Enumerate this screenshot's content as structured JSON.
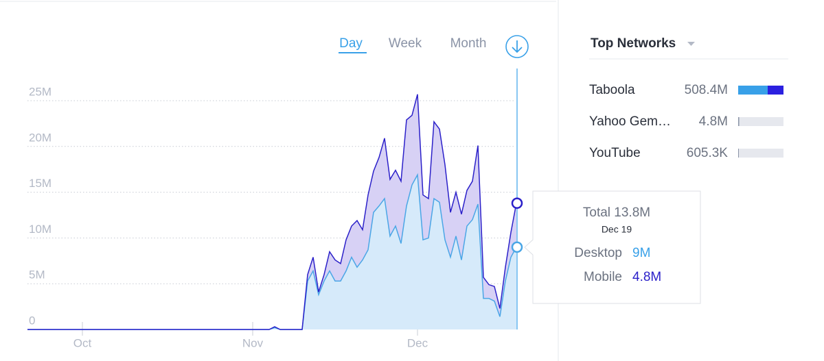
{
  "periods": [
    "Day",
    "Week",
    "Month"
  ],
  "chart_data": {
    "type": "area",
    "stacked": true,
    "categories": [
      null,
      null,
      null,
      null,
      null,
      null,
      null,
      null,
      null,
      null,
      "Oct",
      null,
      null,
      null,
      null,
      null,
      null,
      null,
      null,
      null,
      null,
      null,
      null,
      null,
      null,
      null,
      null,
      null,
      null,
      null,
      null,
      null,
      null,
      null,
      null,
      null,
      null,
      null,
      null,
      null,
      null,
      "Nov",
      null,
      null,
      null,
      null,
      null,
      null,
      null,
      null,
      null,
      null,
      null,
      null,
      null,
      null,
      null,
      null,
      null,
      null,
      null,
      null,
      null,
      null,
      null,
      null,
      null,
      null,
      null,
      null,
      null,
      "Dec",
      null,
      null,
      null,
      null,
      null,
      null,
      null,
      null,
      null,
      null,
      null,
      null,
      null,
      null,
      null,
      null,
      null,
      null
    ],
    "series": [
      {
        "name": "Desktop",
        "color": "#4aa6e6",
        "fill": "#d6eafa",
        "values": [
          0,
          0,
          0,
          0,
          0,
          0,
          0,
          0,
          0,
          0,
          0,
          0,
          0,
          0,
          0,
          0,
          0,
          0,
          0,
          0,
          0,
          0,
          0,
          0,
          0,
          0,
          0,
          0,
          0,
          0,
          0,
          0,
          0,
          0,
          0,
          0,
          0,
          0,
          0,
          0,
          0,
          0,
          0,
          0,
          0,
          0.2,
          0,
          0,
          0,
          0,
          0,
          5.3,
          6.4,
          3.8,
          5.3,
          6.4,
          5.3,
          5.3,
          6.4,
          7.9,
          6.8,
          7.6,
          8.7,
          12.8,
          13.5,
          14.3,
          10.2,
          11.3,
          9.4,
          13.5,
          15.8,
          16.9,
          9.8,
          10,
          14.3,
          13.9,
          9.8,
          7.9,
          10.2,
          7.6,
          11.3,
          12,
          13.7,
          3.4,
          3.4,
          3.1,
          1.4,
          5.3,
          7.9,
          9
        ]
      },
      {
        "name": "Mobile",
        "color": "#2b20c9",
        "fill": "#d7d1f5",
        "values": [
          0,
          0,
          0,
          0,
          0,
          0,
          0,
          0,
          0,
          0,
          0,
          0,
          0,
          0,
          0,
          0,
          0,
          0,
          0,
          0,
          0,
          0,
          0,
          0,
          0,
          0,
          0,
          0,
          0,
          0,
          0,
          0,
          0,
          0,
          0,
          0,
          0,
          0,
          0,
          0,
          0,
          0,
          0,
          0,
          0,
          0.1,
          0,
          0,
          0,
          0,
          0,
          0.7,
          1.5,
          0.3,
          0.7,
          2.1,
          2.3,
          1.9,
          3.4,
          3.4,
          5.1,
          3.3,
          6.0,
          4.5,
          5.3,
          6.6,
          6.2,
          6.1,
          6.8,
          9.4,
          7.6,
          8.8,
          4.9,
          4.3,
          8.4,
          8.0,
          8.2,
          4.9,
          4.8,
          5.0,
          3.9,
          4.2,
          6.4,
          2.3,
          1.5,
          1.6,
          0.9,
          1.5,
          2.7,
          4.8
        ]
      }
    ],
    "ylim": [
      0,
      28
    ],
    "yticks": [
      0,
      {
        "value": 5,
        "label": "5M"
      },
      {
        "value": 10,
        "label": "10M"
      },
      {
        "value": 15,
        "label": "15M"
      },
      {
        "value": 20,
        "label": "20M"
      },
      {
        "value": 25,
        "label": "25M"
      }
    ],
    "grid": true
  },
  "tooltip": {
    "total": "Total 13.8M",
    "date": "Dec 19",
    "values": [
      "9M",
      "4.8M"
    ]
  },
  "networks": {
    "title": "Top Networks",
    "rows": [
      {
        "name": "Taboola",
        "value": "508.4M"
      },
      {
        "name": "Yahoo Gem…",
        "value": "4.8M"
      },
      {
        "name": "YouTube",
        "value": "605.3K"
      }
    ]
  }
}
